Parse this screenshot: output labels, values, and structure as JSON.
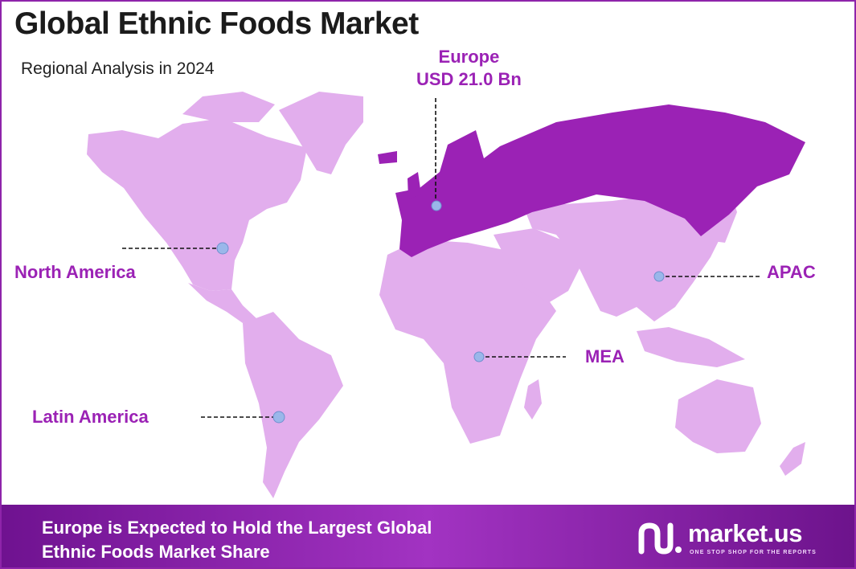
{
  "title": "Global Ethnic Foods Market",
  "subtitle": "Regional Analysis in 2024",
  "colors": {
    "highlight_region": "#9b22b5",
    "other_regions": "#e2aeed",
    "banner": "#8a2aab",
    "marker": "#9ab7ea"
  },
  "regions": {
    "europe": {
      "name": "Europe",
      "value": "USD 21.0 Bn"
    },
    "north_america": {
      "name": "North America"
    },
    "latin_america": {
      "name": "Latin America"
    },
    "apac": {
      "name": "APAC"
    },
    "mea": {
      "name": "MEA"
    }
  },
  "banner": {
    "line1": "Europe is Expected to Hold the Largest Global",
    "line2": "Ethnic Foods Market Share"
  },
  "logo": {
    "name": "market.us",
    "tagline": "ONE STOP SHOP FOR THE REPORTS",
    "icon": "market-us-logo-icon"
  }
}
